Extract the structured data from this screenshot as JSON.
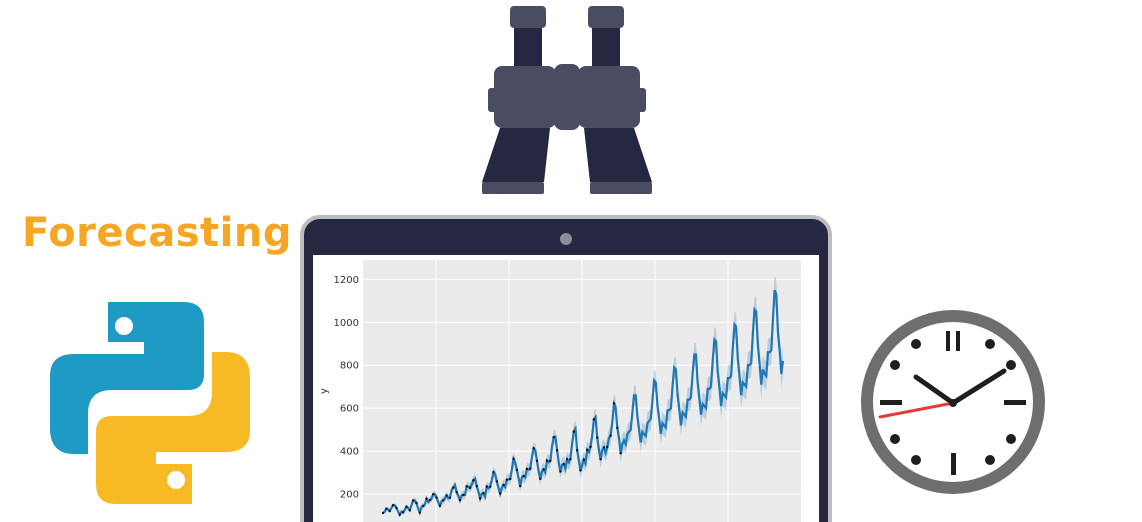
{
  "title": "Forecasting",
  "icons": {
    "binoculars": "binoculars-icon",
    "python": "python-logo",
    "clock": "clock-icon",
    "laptop": "laptop-icon"
  },
  "colors": {
    "title": "#F5A623",
    "binoculars_dark": "#262842",
    "binoculars_light": "#4A4C62",
    "laptop_frame": "#262842",
    "python_blue": "#1E9BC4",
    "python_yellow": "#F7B924",
    "clock_rim": "#6E6E6E",
    "clock_hand": "#1E1E1E",
    "clock_second_hand": "#E53935",
    "series": "#1F77B4",
    "plot_bg": "#EBEBEB"
  },
  "chart_data": {
    "type": "line",
    "ylabel": "y",
    "yticks": [
      200,
      400,
      600,
      800,
      1000,
      1200
    ],
    "ylim": [
      70,
      1290
    ],
    "grid": true,
    "series": [
      {
        "values": [
          112,
          118,
          132,
          129,
          121,
          135,
          148,
          148,
          136,
          119,
          104,
          118,
          115,
          126,
          141,
          135,
          125,
          149,
          170,
          170,
          158,
          133,
          114,
          140,
          145,
          150,
          178,
          163,
          172,
          178,
          199,
          199,
          184,
          162,
          146,
          166,
          171,
          180,
          193,
          181,
          183,
          218,
          230,
          242,
          209,
          191,
          172,
          194,
          196,
          196,
          236,
          235,
          229,
          243,
          264,
          272,
          237,
          211,
          180,
          201,
          204,
          188,
          235,
          227,
          234,
          264,
          302,
          293,
          259,
          229,
          203,
          229,
          242,
          233,
          267,
          269,
          270,
          315,
          364,
          347,
          312,
          274,
          237,
          278,
          284,
          277,
          317,
          313,
          318,
          374,
          413,
          405,
          355,
          306,
          271,
          306,
          315,
          301,
          356,
          348,
          355,
          422,
          465,
          467,
          404,
          347,
          305,
          336,
          340,
          318,
          362,
          348,
          363,
          435,
          491,
          505,
          404,
          359,
          310,
          337,
          360,
          342,
          406,
          396,
          420,
          472,
          548,
          559,
          463,
          407,
          362,
          405,
          417,
          391,
          419,
          461,
          472,
          535,
          622,
          606,
          508,
          461,
          390,
          432,
          450,
          432,
          480,
          490,
          500,
          580,
          660,
          660,
          560,
          500,
          440,
          490,
          480,
          470,
          530,
          540,
          550,
          640,
          730,
          720,
          610,
          550,
          480,
          530,
          520,
          510,
          590,
          590,
          600,
          700,
          790,
          780,
          660,
          600,
          520,
          580,
          570,
          560,
          640,
          640,
          650,
          760,
          850,
          850,
          720,
          650,
          570,
          620,
          610,
          600,
          690,
          690,
          700,
          820,
          920,
          910,
          770,
          700,
          610,
          670,
          660,
          650,
          740,
          740,
          750,
          880,
          990,
          980,
          830,
          750,
          660,
          720,
          710,
          700,
          800,
          800,
          810,
          950,
          1060,
          1050,
          890,
          810,
          710,
          780,
          760,
          750,
          860,
          860,
          870,
          1020,
          1150,
          1130,
          950,
          870,
          760,
          820
        ]
      }
    ]
  }
}
